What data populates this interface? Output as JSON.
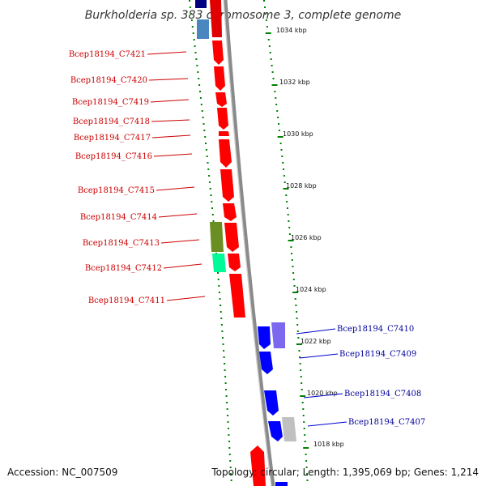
{
  "title": "Burkholderia sp. 383 chromosome 3, complete genome",
  "accession": "Accession: NC_007509",
  "topology": "Topology: circular; Length: 1,395,069 bp; Genes: 1,214",
  "colors": {
    "forward_gene": "#ff0000",
    "reverse_gene": "#0000ff",
    "tick": "#008000",
    "backbone": "#999999",
    "left_label": "#cc0000",
    "right_label": "#000099"
  },
  "kbp_labels": [
    "1034 kbp",
    "1032 kbp",
    "1030 kbp",
    "1028 kbp",
    "1026 kbp",
    "1024 kbp",
    "1022 kbp",
    "1020 kbp",
    "1018 kbp"
  ],
  "left_genes": [
    "Bcep18194_C7421",
    "Bcep18194_C7420",
    "Bcep18194_C7419",
    "Bcep18194_C7418",
    "Bcep18194_C7417",
    "Bcep18194_C7416",
    "Bcep18194_C7415",
    "Bcep18194_C7414",
    "Bcep18194_C7413",
    "Bcep18194_C7412",
    "Bcep18194_C7411"
  ],
  "right_genes": [
    "Bcep18194_C7410",
    "Bcep18194_C7409",
    "Bcep18194_C7408",
    "Bcep18194_C7407"
  ]
}
